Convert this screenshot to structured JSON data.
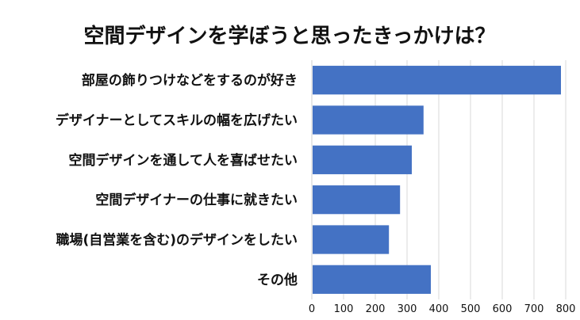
{
  "chart_data": {
    "type": "bar",
    "orientation": "horizontal",
    "title": "空間デザインを学ぼうと思ったきっかけは？",
    "categories": [
      "部屋の飾りつけなどをするのが好き",
      "デザイナーとしてスキルの幅を広げたい",
      "空間デザインを通して人を喜ばせたい",
      "空間デザイナーの仕事に就きたい",
      "職場(自営業を含む)のデザインをしたい",
      "その他"
    ],
    "values": [
      785,
      352,
      315,
      278,
      243,
      375
    ],
    "xlim": [
      0,
      800
    ],
    "xticks": [
      0,
      100,
      200,
      300,
      400,
      500,
      600,
      700,
      800
    ],
    "xlabel": "",
    "ylabel": "",
    "grid": true,
    "legend": "none",
    "bar_color": "#4472c4"
  }
}
